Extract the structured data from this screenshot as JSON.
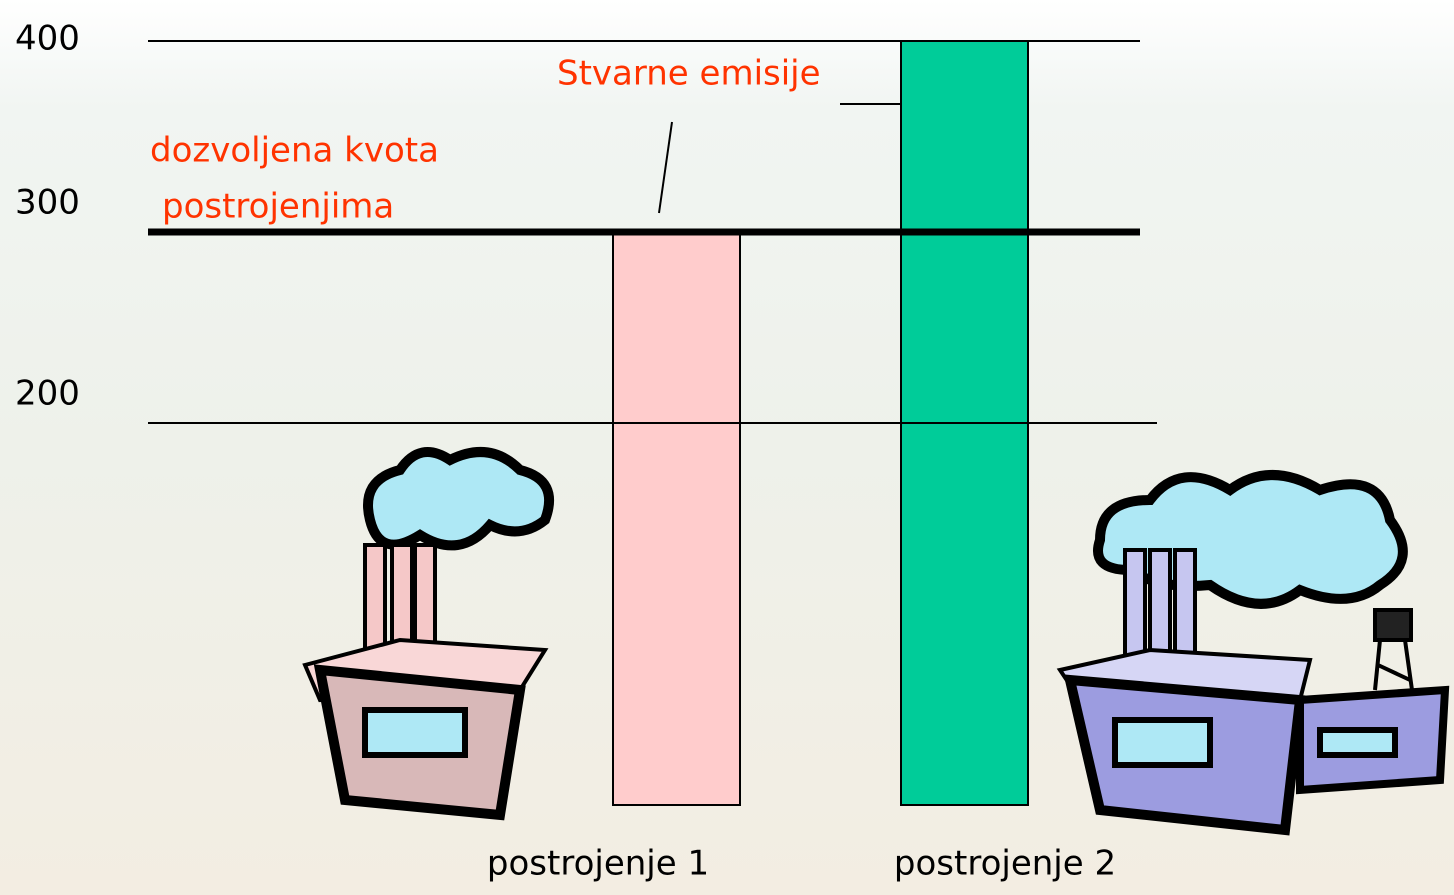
{
  "chart_data": {
    "type": "bar",
    "categories": [
      "postrojenje 1",
      "postrojenje 2"
    ],
    "values": [
      300,
      400
    ],
    "colors": [
      "#ffcccc",
      "#00cc99"
    ],
    "ylim": [
      0,
      400
    ],
    "yticks": [
      200,
      300,
      400
    ],
    "grid": true,
    "quota": 300,
    "quota_label": [
      "dozvoljena kvota",
      "postrojenjima"
    ],
    "annotation": "Stvarne emisije"
  }
}
